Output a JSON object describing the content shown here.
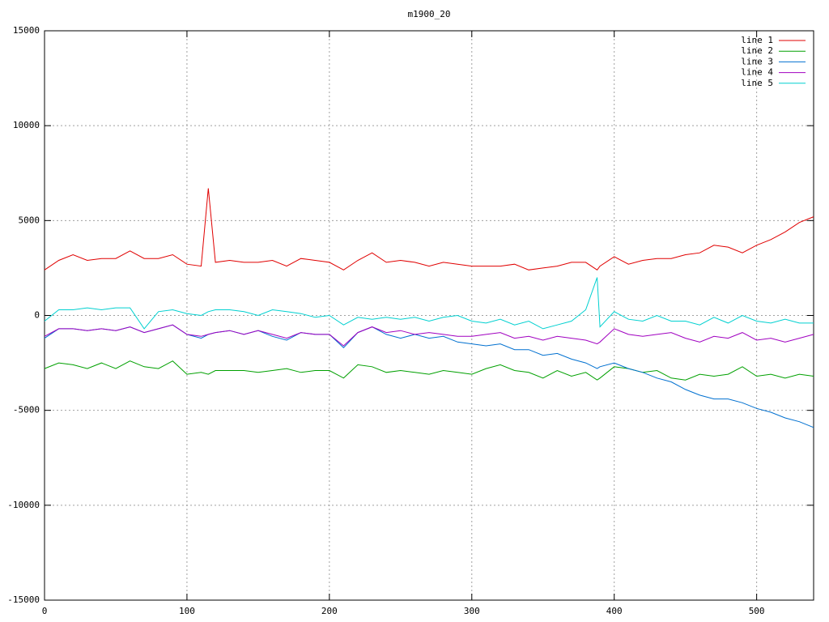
{
  "chart_data": {
    "type": "line",
    "title": "m1900_20",
    "x": [
      0,
      10,
      20,
      30,
      40,
      50,
      60,
      70,
      80,
      90,
      100,
      110,
      115,
      120,
      130,
      140,
      150,
      160,
      170,
      180,
      190,
      200,
      210,
      220,
      230,
      240,
      250,
      260,
      270,
      280,
      290,
      300,
      310,
      320,
      330,
      340,
      350,
      360,
      370,
      380,
      388,
      390,
      400,
      410,
      420,
      430,
      440,
      450,
      460,
      470,
      480,
      490,
      500,
      510,
      520,
      530,
      540
    ],
    "series": [
      {
        "name": "line 1",
        "color": "#e00000",
        "values": [
          2400,
          2900,
          3200,
          2900,
          3000,
          3000,
          3400,
          3000,
          3000,
          3200,
          2700,
          2600,
          6700,
          2800,
          2900,
          2800,
          2800,
          2900,
          2600,
          3000,
          2900,
          2800,
          2400,
          2900,
          3300,
          2800,
          2900,
          2800,
          2600,
          2800,
          2700,
          2600,
          2600,
          2600,
          2700,
          2400,
          2500,
          2600,
          2800,
          2800,
          2400,
          2600,
          3100,
          2700,
          2900,
          3000,
          3000,
          3200,
          3300,
          3700,
          3600,
          3300,
          3700,
          4000,
          4400,
          4900,
          5200
        ]
      },
      {
        "name": "line 2",
        "color": "#00a000",
        "values": [
          -2800,
          -2500,
          -2600,
          -2800,
          -2500,
          -2800,
          -2400,
          -2700,
          -2800,
          -2400,
          -3100,
          -3000,
          -3100,
          -2900,
          -2900,
          -2900,
          -3000,
          -2900,
          -2800,
          -3000,
          -2900,
          -2900,
          -3300,
          -2600,
          -2700,
          -3000,
          -2900,
          -3000,
          -3100,
          -2900,
          -3000,
          -3100,
          -2800,
          -2600,
          -2900,
          -3000,
          -3300,
          -2900,
          -3200,
          -3000,
          -3400,
          -3300,
          -2700,
          -2800,
          -3000,
          -2900,
          -3300,
          -3400,
          -3100,
          -3200,
          -3100,
          -2700,
          -3200,
          -3100,
          -3300,
          -3100,
          -3200
        ]
      },
      {
        "name": "line 3",
        "color": "#0070d0",
        "values": [
          -1200,
          -700,
          -700,
          -800,
          -700,
          -800,
          -600,
          -900,
          -700,
          -500,
          -1000,
          -1200,
          -1000,
          -900,
          -800,
          -1000,
          -800,
          -1100,
          -1300,
          -900,
          -1000,
          -1000,
          -1700,
          -900,
          -600,
          -1000,
          -1200,
          -1000,
          -1200,
          -1100,
          -1400,
          -1500,
          -1600,
          -1500,
          -1800,
          -1800,
          -2100,
          -2000,
          -2300,
          -2500,
          -2800,
          -2700,
          -2500,
          -2800,
          -3000,
          -3300,
          -3500,
          -3900,
          -4200,
          -4400,
          -4400,
          -4600,
          -4900,
          -5100,
          -5400,
          -5600,
          -5900
        ]
      },
      {
        "name": "line 4",
        "color": "#a000c0",
        "values": [
          -1100,
          -700,
          -700,
          -800,
          -700,
          -800,
          -600,
          -900,
          -700,
          -500,
          -1000,
          -1100,
          -1000,
          -900,
          -800,
          -1000,
          -800,
          -1000,
          -1200,
          -900,
          -1000,
          -1000,
          -1600,
          -900,
          -600,
          -900,
          -800,
          -1000,
          -900,
          -1000,
          -1100,
          -1100,
          -1000,
          -900,
          -1200,
          -1100,
          -1300,
          -1100,
          -1200,
          -1300,
          -1500,
          -1400,
          -700,
          -1000,
          -1100,
          -1000,
          -900,
          -1200,
          -1400,
          -1100,
          -1200,
          -900,
          -1300,
          -1200,
          -1400,
          -1200,
          -1000
        ]
      },
      {
        "name": "line 5",
        "color": "#00d0d0",
        "values": [
          -300,
          300,
          300,
          400,
          300,
          400,
          400,
          -700,
          200,
          300,
          100,
          0,
          200,
          300,
          300,
          200,
          0,
          300,
          200,
          100,
          -100,
          0,
          -500,
          -100,
          -200,
          -100,
          -200,
          -100,
          -300,
          -100,
          0,
          -300,
          -400,
          -200,
          -500,
          -300,
          -700,
          -500,
          -300,
          300,
          2000,
          -600,
          200,
          -200,
          -300,
          0,
          -300,
          -300,
          -500,
          -100,
          -400,
          0,
          -300,
          -400,
          -200,
          -400,
          -400
        ]
      }
    ],
    "xlim": [
      0,
      540
    ],
    "ylim": [
      -15000,
      15000
    ],
    "xticks": [
      0,
      100,
      200,
      300,
      400,
      500
    ],
    "yticks": [
      -15000,
      -10000,
      -5000,
      0,
      5000,
      10000,
      15000
    ],
    "grid": true,
    "legend": "top-right"
  }
}
